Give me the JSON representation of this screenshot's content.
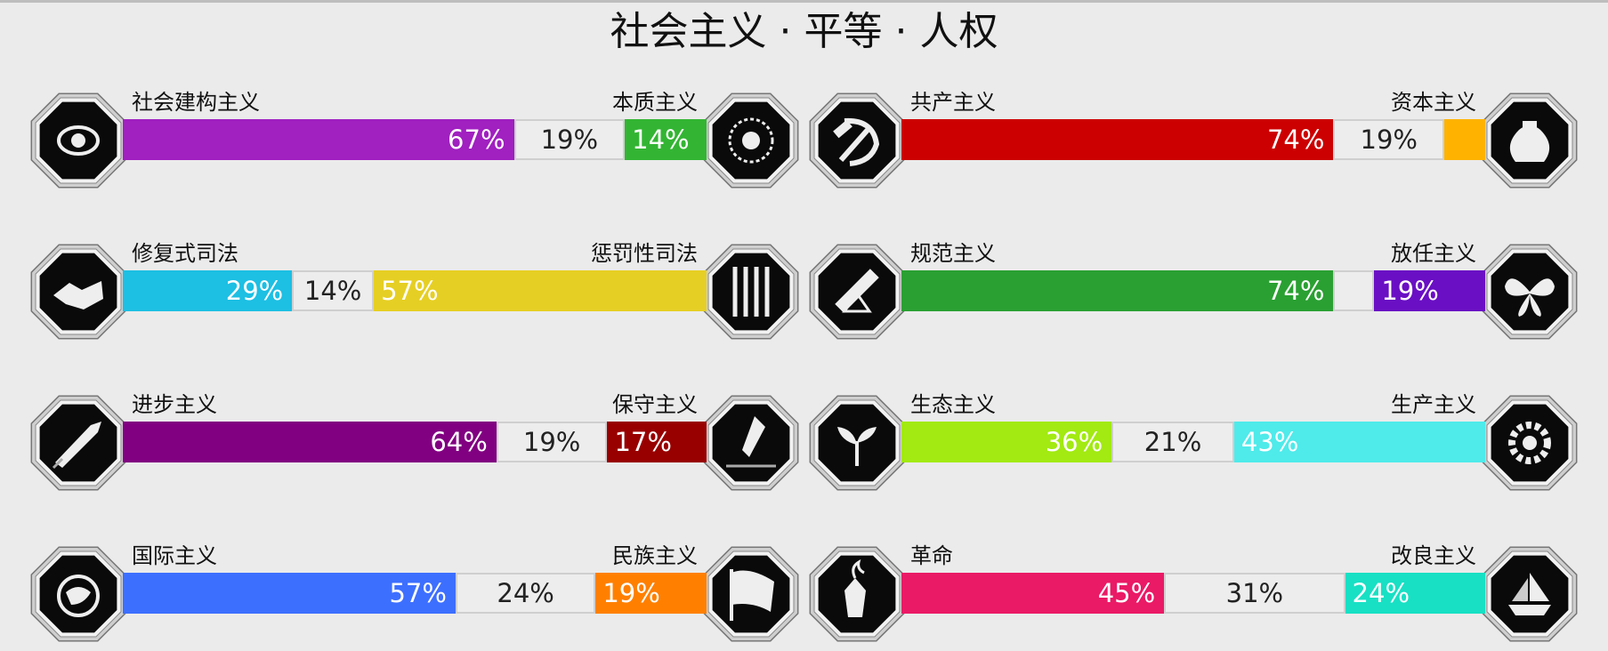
{
  "title": "社会主义 · 平等 · 人权",
  "axes": [
    {
      "left_label": "社会建构主义",
      "right_label": "本质主义",
      "left_pct": 67,
      "mid_pct": 19,
      "right_pct": 14,
      "left_text": "67%",
      "mid_text": "19%",
      "right_text": "14%",
      "left_color": "#a020c0",
      "right_color": "#33b533",
      "left_icon": "eye-icon",
      "right_icon": "flower-icon"
    },
    {
      "left_label": "修复式司法",
      "right_label": "惩罚性司法",
      "left_pct": 29,
      "mid_pct": 14,
      "right_pct": 57,
      "left_text": "29%",
      "mid_text": "14%",
      "right_text": "57%",
      "left_color": "#1dbfe3",
      "right_color": "#e6cf24",
      "left_icon": "handshake-icon",
      "right_icon": "prison-bars-icon"
    },
    {
      "left_label": "进步主义",
      "right_label": "保守主义",
      "left_pct": 64,
      "mid_pct": 19,
      "right_pct": 17,
      "left_text": "64%",
      "mid_text": "19%",
      "right_text": "17%",
      "left_color": "#810081",
      "right_color": "#980000",
      "left_icon": "rocket-icon",
      "right_icon": "fountain-pen-icon"
    },
    {
      "left_label": "国际主义",
      "right_label": "民族主义",
      "left_pct": 57,
      "mid_pct": 24,
      "right_pct": 19,
      "left_text": "57%",
      "mid_text": "24%",
      "right_text": "19%",
      "left_color": "#3d6fff",
      "right_color": "#ff8000",
      "left_icon": "globe-icon",
      "right_icon": "flag-icon"
    },
    {
      "left_label": "共产主义",
      "right_label": "资本主义",
      "left_pct": 74,
      "mid_pct": 19,
      "right_pct": 7,
      "left_text": "74%",
      "mid_text": "19%",
      "right_text": "",
      "left_color": "#cc0000",
      "right_color": "#ffb300",
      "left_icon": "hammer-sickle-icon",
      "right_icon": "money-bag-icon"
    },
    {
      "left_label": "规范主义",
      "right_label": "放任主义",
      "left_pct": 74,
      "mid_pct": 7,
      "right_pct": 19,
      "left_text": "74%",
      "mid_text": "",
      "right_text": "19%",
      "left_color": "#2aa032",
      "right_color": "#6a0fc4",
      "left_icon": "ruler-shapes-icon",
      "right_icon": "butterfly-icon"
    },
    {
      "left_label": "生态主义",
      "right_label": "生产主义",
      "left_pct": 36,
      "mid_pct": 21,
      "right_pct": 43,
      "left_text": "36%",
      "mid_text": "21%",
      "right_text": "43%",
      "left_color": "#a2ea12",
      "right_color": "#4feaea",
      "left_icon": "sprout-icon",
      "right_icon": "gear-icon"
    },
    {
      "left_label": "革命",
      "right_label": "改良主义",
      "left_pct": 45,
      "mid_pct": 31,
      "right_pct": 24,
      "left_text": "45%",
      "mid_text": "31%",
      "right_text": "24%",
      "left_color": "#ea1a66",
      "right_color": "#18e0c4",
      "left_icon": "molotov-icon",
      "right_icon": "ship-icon"
    }
  ]
}
